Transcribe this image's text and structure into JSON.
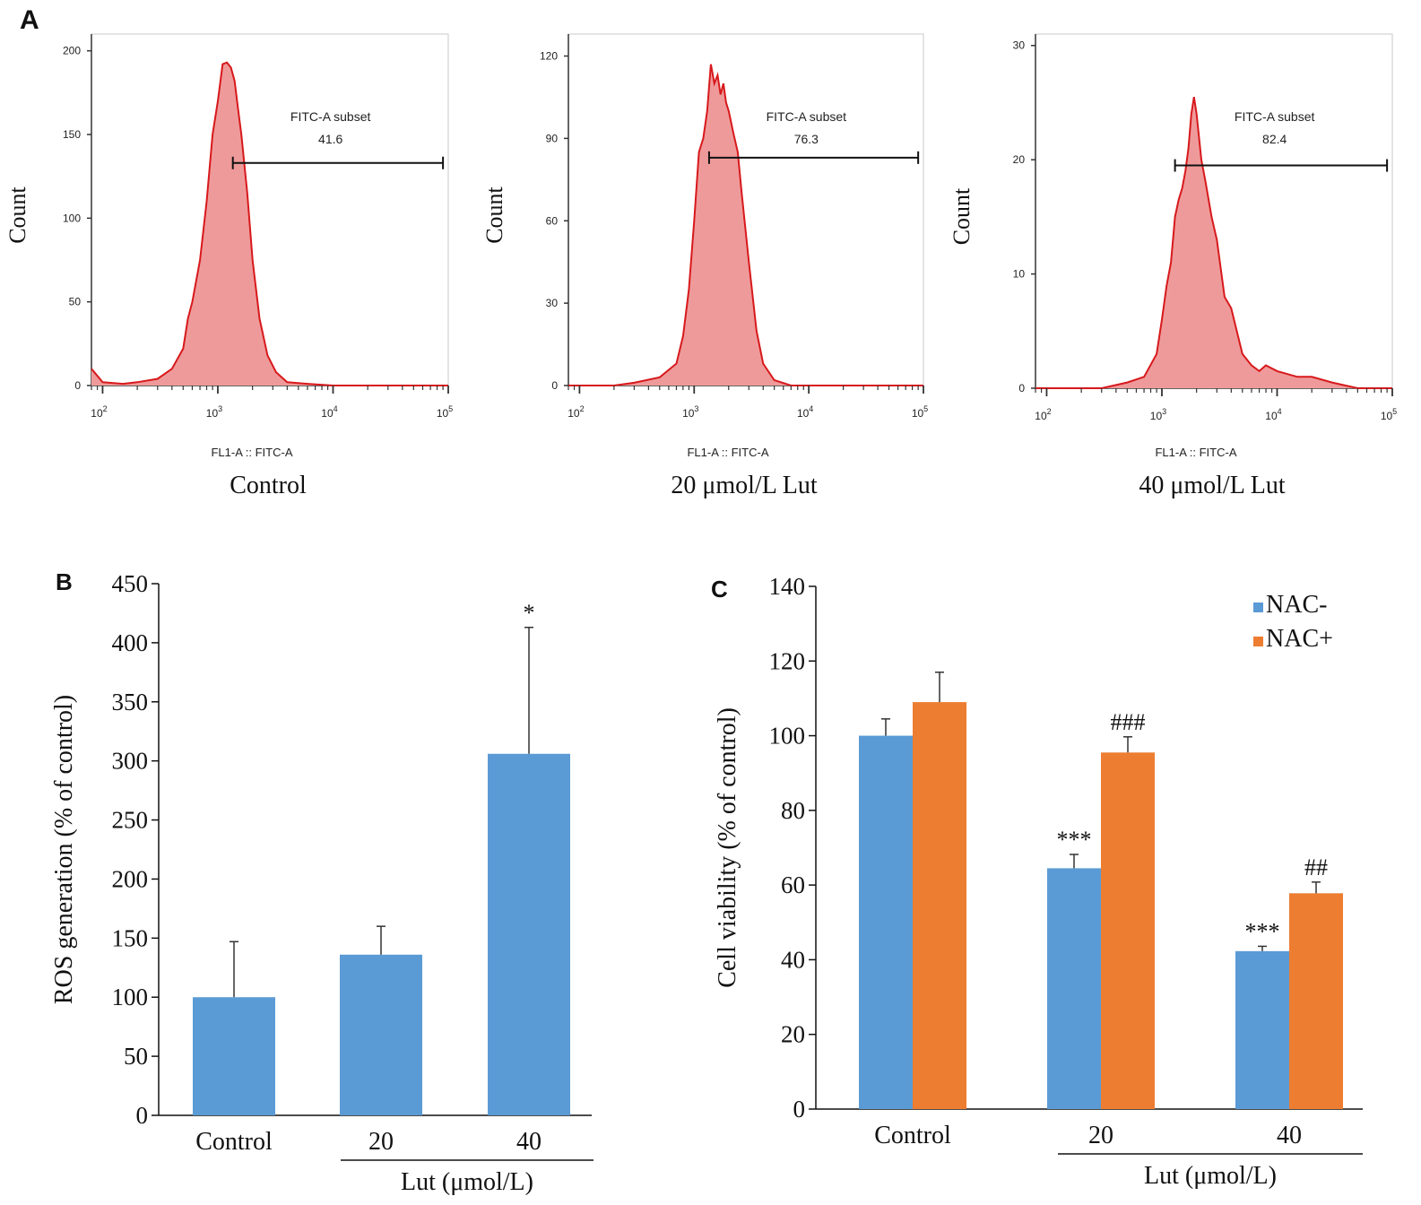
{
  "panel_labels": [
    "A",
    "B",
    "C"
  ],
  "chart_data": [
    {
      "type": "area",
      "panel": "A",
      "caption": "Control",
      "ylabel": "Count",
      "xlabel": "FL1-A :: FITC-A",
      "x_scale": "log",
      "xlim": [
        80,
        100000
      ],
      "ylim": [
        0,
        210
      ],
      "x_ticks": [
        100,
        1000,
        10000,
        100000
      ],
      "x_tick_labels": [
        "10²",
        "10³",
        "10⁴",
        "10⁵"
      ],
      "y_ticks": [
        0,
        50,
        100,
        150,
        200
      ],
      "gate": {
        "name": "FITC-A subset",
        "value": "41.6",
        "x_start": 1350,
        "x_end": 90000,
        "y": 133
      },
      "x": [
        80,
        100,
        150,
        200,
        300,
        400,
        500,
        550,
        600,
        700,
        800,
        900,
        1000,
        1100,
        1200,
        1300,
        1400,
        1500,
        1600,
        1800,
        2000,
        2300,
        2700,
        3200,
        4000,
        6000,
        10000,
        30000,
        100000
      ],
      "y": [
        10,
        2,
        1,
        2,
        4,
        10,
        22,
        40,
        50,
        75,
        110,
        150,
        170,
        192,
        193,
        190,
        182,
        165,
        150,
        115,
        75,
        40,
        18,
        8,
        2,
        1,
        0,
        0,
        0
      ]
    },
    {
      "type": "area",
      "panel": "A",
      "caption": "20 μmol/L Lut",
      "ylabel": "Count",
      "xlabel": "FL1-A :: FITC-A",
      "x_scale": "log",
      "xlim": [
        80,
        100000
      ],
      "ylim": [
        0,
        128
      ],
      "x_ticks": [
        100,
        1000,
        10000,
        100000
      ],
      "x_tick_labels": [
        "10²",
        "10³",
        "10⁴",
        "10⁵"
      ],
      "y_ticks": [
        0,
        30,
        60,
        90,
        120
      ],
      "gate": {
        "name": "FITC-A subset",
        "value": "76.3",
        "x_start": 1350,
        "x_end": 90000,
        "y": 83
      },
      "x": [
        80,
        200,
        300,
        500,
        700,
        800,
        900,
        1000,
        1100,
        1200,
        1300,
        1400,
        1500,
        1600,
        1700,
        1800,
        1900,
        2000,
        2200,
        2400,
        2600,
        3000,
        3500,
        4000,
        5000,
        7000,
        10000,
        30000,
        100000
      ],
      "y": [
        0,
        0,
        1,
        3,
        8,
        18,
        35,
        60,
        85,
        90,
        100,
        117,
        110,
        113,
        106,
        110,
        103,
        100,
        92,
        85,
        70,
        45,
        20,
        8,
        2,
        0,
        0,
        0,
        0
      ]
    },
    {
      "type": "area",
      "panel": "A",
      "caption": "40 μmol/L Lut",
      "ylabel": "Count",
      "xlabel": "FL1-A :: FITC-A",
      "x_scale": "log",
      "xlim": [
        80,
        100000
      ],
      "ylim": [
        0,
        31
      ],
      "x_ticks": [
        100,
        1000,
        10000,
        100000
      ],
      "x_tick_labels": [
        "10²",
        "10³",
        "10⁴",
        "10⁵"
      ],
      "y_ticks": [
        0,
        10,
        20,
        30
      ],
      "gate": {
        "name": "FITC-A subset",
        "value": "82.4",
        "x_start": 1300,
        "x_end": 90000,
        "y": 19.5
      },
      "x": [
        80,
        300,
        500,
        700,
        900,
        1000,
        1100,
        1200,
        1300,
        1400,
        1500,
        1600,
        1700,
        1800,
        1900,
        2000,
        2200,
        2400,
        2700,
        3000,
        3500,
        4000,
        5000,
        6000,
        7000,
        8000,
        10000,
        15000,
        20000,
        30000,
        50000,
        100000
      ],
      "y": [
        0,
        0,
        0.5,
        1,
        3,
        6,
        9,
        11,
        15,
        16.5,
        17.5,
        19,
        21,
        24,
        25.5,
        24,
        20,
        18,
        15,
        13,
        8,
        7,
        3,
        2,
        1.5,
        2,
        1.5,
        1,
        1,
        0.5,
        0,
        0
      ]
    },
    {
      "type": "bar",
      "panel": "B",
      "categories": [
        "Control",
        "20",
        "40"
      ],
      "group_label": "Lut (μmol/L)",
      "ylabel": "ROS generation (% of control)",
      "ylim": [
        0,
        450
      ],
      "y_ticks": [
        0,
        50,
        100,
        150,
        200,
        250,
        300,
        350,
        400,
        450
      ],
      "series": [
        {
          "values": [
            100,
            136,
            306
          ],
          "errors": [
            47,
            24,
            107
          ],
          "annotations": [
            "",
            "",
            "*"
          ],
          "color": "#5b9bd5"
        }
      ]
    },
    {
      "type": "bar",
      "panel": "C",
      "categories": [
        "Control",
        "20",
        "40"
      ],
      "group_label": "Lut (μmol/L)",
      "ylabel": "Cell viability (% of control)",
      "ylim": [
        0,
        140
      ],
      "y_ticks": [
        0,
        20,
        40,
        60,
        80,
        100,
        120,
        140
      ],
      "legend_position": "top-right",
      "series": [
        {
          "name": "NAC-",
          "values": [
            100,
            64.5,
            42.3
          ],
          "errors": [
            4.5,
            3.7,
            1.3
          ],
          "annotations": [
            "",
            "***",
            "***"
          ],
          "color": "#5b9bd5"
        },
        {
          "name": "NAC+",
          "values": [
            109,
            95.5,
            57.8
          ],
          "errors": [
            8,
            4.2,
            3
          ],
          "annotations": [
            "",
            "###",
            "##"
          ],
          "color": "#ed7d31"
        }
      ]
    }
  ]
}
